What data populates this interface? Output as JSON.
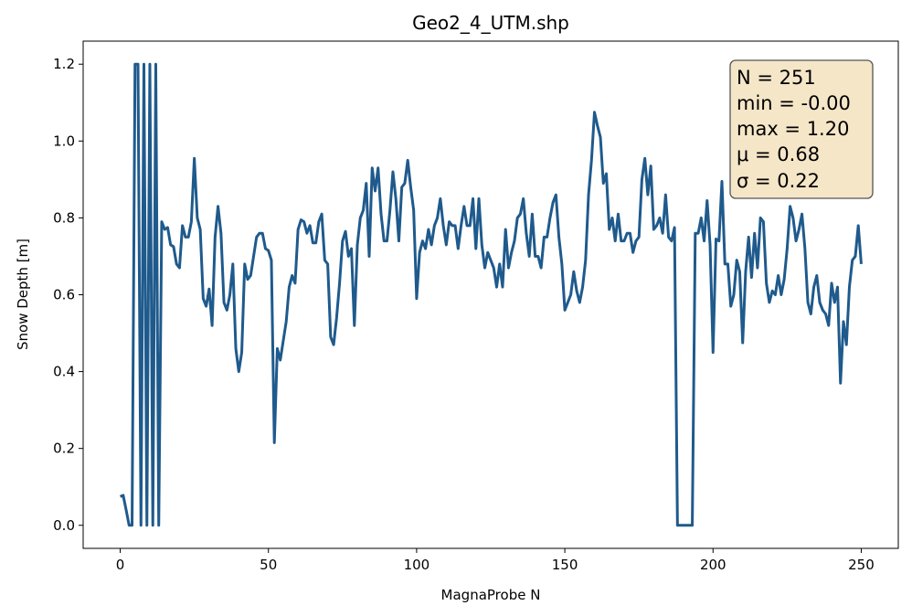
{
  "chart_data": {
    "type": "line",
    "title": "Geo2_4_UTM.shp",
    "xlabel": "MagnaProbe N",
    "ylabel": "Snow Depth [m]",
    "xlim": [
      -12.5,
      262.5
    ],
    "ylim": [
      -0.06,
      1.26
    ],
    "xticks": [
      "0",
      "50",
      "100",
      "150",
      "200",
      "250"
    ],
    "yticks": [
      "0.0",
      "0.2",
      "0.4",
      "0.6",
      "0.8",
      "1.0",
      "1.2"
    ],
    "xtick_values": [
      0,
      50,
      100,
      150,
      200,
      250
    ],
    "ytick_values": [
      0.0,
      0.2,
      0.4,
      0.6,
      0.8,
      1.0,
      1.2
    ],
    "grid": false,
    "line_color": "#1f5a8c",
    "series": [
      {
        "x": [
          0,
          1,
          2,
          3,
          4,
          5,
          6,
          7,
          8,
          9,
          10,
          11,
          12,
          13,
          14,
          15,
          16,
          17,
          18,
          19,
          20,
          21,
          22,
          23,
          24,
          25,
          26,
          27,
          28,
          29,
          30,
          31,
          32,
          33,
          34,
          35,
          36,
          37,
          38,
          39,
          40,
          41,
          42,
          43,
          44,
          45,
          46,
          47,
          48,
          49,
          50,
          51,
          52,
          53,
          54,
          55,
          56,
          57,
          58,
          59,
          60,
          61,
          62,
          63,
          64,
          65,
          66,
          67,
          68,
          69,
          70,
          71,
          72,
          73,
          74,
          75,
          76,
          77,
          78,
          79,
          80,
          81,
          82,
          83,
          84,
          85,
          86,
          87,
          88,
          89,
          90,
          91,
          92,
          93,
          94,
          95,
          96,
          97,
          98,
          99,
          100,
          101,
          102,
          103,
          104,
          105,
          106,
          107,
          108,
          109,
          110,
          111,
          112,
          113,
          114,
          115,
          116,
          117,
          118,
          119,
          120,
          121,
          122,
          123,
          124,
          125,
          126,
          127,
          128,
          129,
          130,
          131,
          132,
          133,
          134,
          135,
          136,
          137,
          138,
          139,
          140,
          141,
          142,
          143,
          144,
          145,
          146,
          147,
          148,
          149,
          150,
          151,
          152,
          153,
          154,
          155,
          156,
          157,
          158,
          159,
          160,
          161,
          162,
          163,
          164,
          165,
          166,
          167,
          168,
          169,
          170,
          171,
          172,
          173,
          174,
          175,
          176,
          177,
          178,
          179,
          180,
          181,
          182,
          183,
          184,
          185,
          186,
          187,
          188,
          189,
          190,
          191,
          192,
          193,
          194,
          195,
          196,
          197,
          198,
          199,
          200,
          201,
          202,
          203,
          204,
          205,
          206,
          207,
          208,
          209,
          210,
          211,
          212,
          213,
          214,
          215,
          216,
          217,
          218,
          219,
          220,
          221,
          222,
          223,
          224,
          225,
          226,
          227,
          228,
          229,
          230,
          231,
          232,
          233,
          234,
          235,
          236,
          237,
          238,
          239,
          240,
          241,
          242,
          243,
          244,
          245,
          246,
          247,
          248,
          249,
          250
        ],
        "y": [
          0.075,
          0.078,
          0.04,
          0.0,
          0.0,
          1.2,
          1.2,
          0.0,
          1.2,
          0.0,
          1.2,
          0.0,
          1.2,
          0.0,
          0.79,
          0.77,
          0.775,
          0.73,
          0.725,
          0.68,
          0.67,
          0.78,
          0.75,
          0.75,
          0.79,
          0.955,
          0.8,
          0.77,
          0.59,
          0.57,
          0.615,
          0.52,
          0.75,
          0.83,
          0.76,
          0.58,
          0.56,
          0.6,
          0.68,
          0.46,
          0.4,
          0.45,
          0.68,
          0.64,
          0.65,
          0.7,
          0.75,
          0.76,
          0.76,
          0.72,
          0.715,
          0.69,
          0.215,
          0.46,
          0.43,
          0.48,
          0.53,
          0.62,
          0.65,
          0.63,
          0.77,
          0.795,
          0.79,
          0.76,
          0.78,
          0.735,
          0.735,
          0.79,
          0.81,
          0.69,
          0.68,
          0.49,
          0.47,
          0.54,
          0.63,
          0.74,
          0.765,
          0.7,
          0.72,
          0.52,
          0.73,
          0.8,
          0.82,
          0.89,
          0.7,
          0.93,
          0.87,
          0.93,
          0.81,
          0.74,
          0.74,
          0.82,
          0.92,
          0.85,
          0.74,
          0.88,
          0.89,
          0.95,
          0.88,
          0.82,
          0.59,
          0.71,
          0.74,
          0.72,
          0.77,
          0.73,
          0.78,
          0.8,
          0.85,
          0.78,
          0.73,
          0.79,
          0.78,
          0.78,
          0.72,
          0.78,
          0.83,
          0.78,
          0.78,
          0.85,
          0.72,
          0.85,
          0.73,
          0.67,
          0.71,
          0.69,
          0.67,
          0.62,
          0.68,
          0.62,
          0.77,
          0.67,
          0.71,
          0.74,
          0.8,
          0.81,
          0.85,
          0.76,
          0.7,
          0.81,
          0.7,
          0.7,
          0.67,
          0.75,
          0.75,
          0.8,
          0.84,
          0.86,
          0.75,
          0.68,
          0.56,
          0.58,
          0.6,
          0.66,
          0.61,
          0.58,
          0.62,
          0.69,
          0.86,
          0.95,
          1.075,
          1.04,
          1.01,
          0.89,
          0.915,
          0.77,
          0.8,
          0.74,
          0.81,
          0.74,
          0.74,
          0.76,
          0.76,
          0.71,
          0.74,
          0.75,
          0.9,
          0.955,
          0.86,
          0.935,
          0.77,
          0.78,
          0.8,
          0.76,
          0.86,
          0.75,
          0.74,
          0.775,
          0.0,
          0.0,
          0.0,
          0.0,
          0.0,
          0.0,
          0.76,
          0.76,
          0.8,
          0.74,
          0.845,
          0.73,
          0.45,
          0.745,
          0.74,
          0.895,
          0.68,
          0.68,
          0.57,
          0.6,
          0.69,
          0.66,
          0.475,
          0.66,
          0.75,
          0.645,
          0.76,
          0.67,
          0.8,
          0.79,
          0.63,
          0.58,
          0.61,
          0.6,
          0.65,
          0.6,
          0.64,
          0.72,
          0.83,
          0.8,
          0.74,
          0.77,
          0.81,
          0.72,
          0.58,
          0.55,
          0.62,
          0.65,
          0.58,
          0.56,
          0.55,
          0.52,
          0.63,
          0.58,
          0.62,
          0.37,
          0.53,
          0.47,
          0.62,
          0.69,
          0.7,
          0.78,
          0.68
        ]
      }
    ]
  },
  "stats_box": {
    "lines": [
      "N = 251",
      "min = -0.00",
      "max = 1.20",
      "μ = 0.68",
      "σ = 0.22"
    ],
    "background": "#f5e6c8",
    "border": "#555555"
  }
}
